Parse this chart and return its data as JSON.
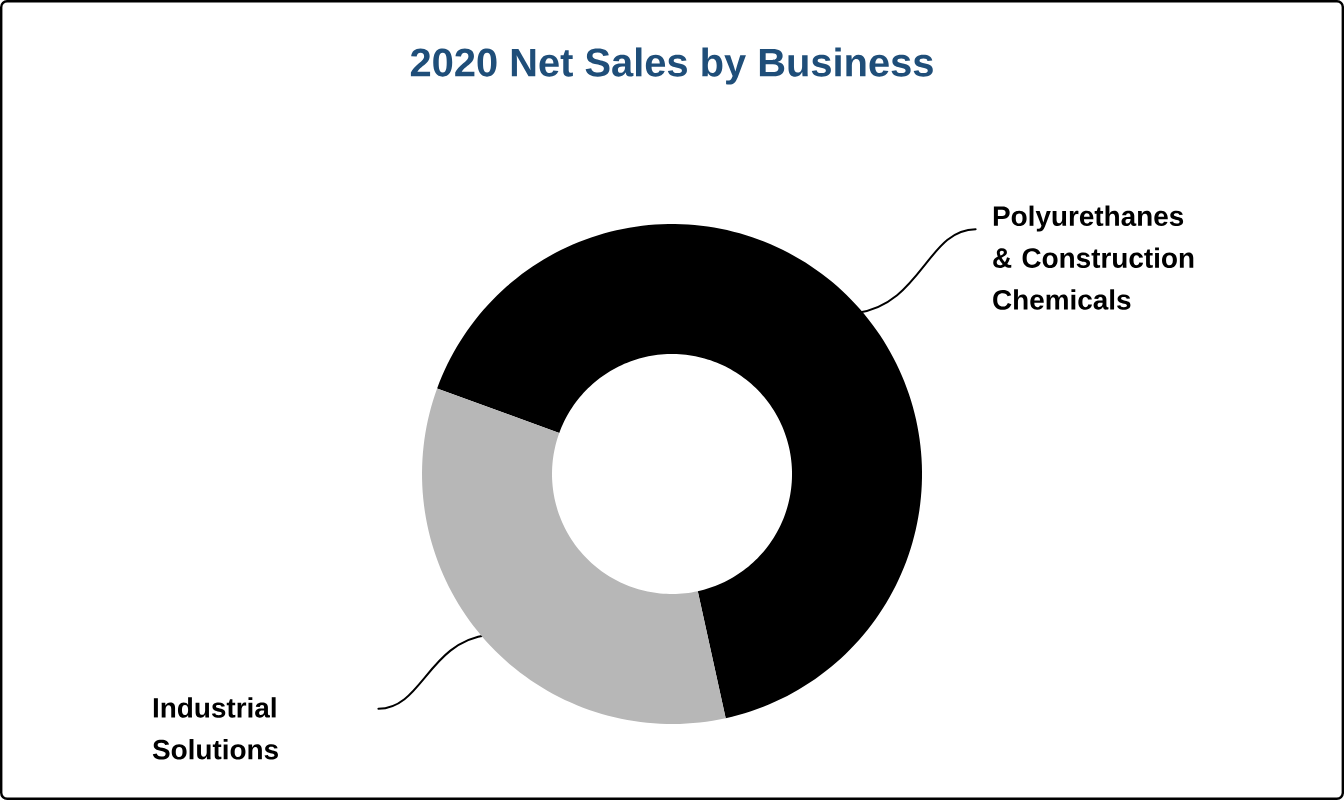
{
  "chart_data": {
    "type": "donut",
    "title": "2020 Net Sales by Business",
    "categories": [
      "Polyurethanes & Construction Chemicals",
      "Industrial Solutions"
    ],
    "values": [
      66,
      34
    ],
    "colors": [
      "#000000",
      "#b7b7b7"
    ]
  }
}
